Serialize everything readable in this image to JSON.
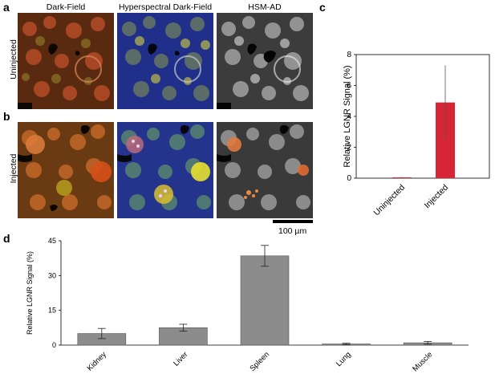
{
  "figure": {
    "panel_labels": {
      "a": "a",
      "b": "b",
      "c": "c",
      "d": "d"
    },
    "column_headers": [
      "Dark-Field",
      "Hyperspectral Dark-Field",
      "HSM-AD"
    ],
    "row_labels": [
      "Uninjected",
      "Injected"
    ],
    "scale_bar_label": "100 µm"
  },
  "chart_data": [
    {
      "id": "c",
      "type": "bar",
      "title": "",
      "xlabel": "",
      "ylabel": "Relative LGNR Signal (%)",
      "categories": [
        "Uninjected",
        "Injected"
      ],
      "values": [
        0.05,
        4.9
      ],
      "error": [
        0.03,
        2.4
      ],
      "ylim": [
        0,
        8
      ],
      "yticks": [
        0,
        2,
        4,
        6,
        8
      ],
      "bar_color": "#d62535",
      "grid": false
    },
    {
      "id": "d",
      "type": "bar",
      "title": "",
      "xlabel": "",
      "ylabel": "Relative LGNR Signal (%)",
      "categories": [
        "Kidney",
        "Liver",
        "Spleen",
        "Lung",
        "Muscle"
      ],
      "values": [
        5,
        7.5,
        38.5,
        0.5,
        1
      ],
      "error": [
        2.2,
        1.5,
        4.5,
        0.3,
        0.6
      ],
      "ylim": [
        0,
        45
      ],
      "yticks": [
        0,
        15,
        30,
        45
      ],
      "bar_color": "#8c8c8c",
      "grid": false
    }
  ]
}
